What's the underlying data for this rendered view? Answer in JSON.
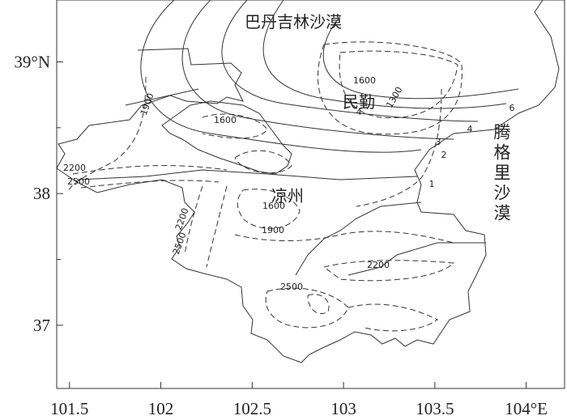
{
  "map": {
    "xlim": [
      101.43,
      104.21
    ],
    "ylim": [
      36.52,
      39.47
    ],
    "xticks": [
      101.5,
      102,
      102.5,
      103,
      103.5,
      {
        "value": 104,
        "label": "104°E"
      }
    ],
    "yticks": [
      37,
      38,
      {
        "value": 39,
        "label": "39°N"
      }
    ],
    "yminor": [
      37.5,
      38.5
    ],
    "places": [
      "巴丹吉林沙漠",
      "民勤",
      "凉州",
      "腾格里沙漠"
    ],
    "contour_labels": [
      1900,
      1600,
      1600,
      1300,
      4,
      6,
      4,
      3,
      2,
      1,
      2200,
      2500,
      2200,
      2500,
      1600,
      1900,
      2200,
      2500
    ]
  }
}
